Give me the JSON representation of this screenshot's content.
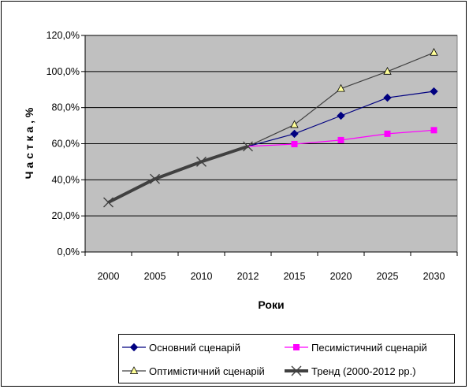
{
  "chart_data": {
    "type": "line",
    "categories": [
      "2000",
      "2005",
      "2010",
      "2012",
      "2015",
      "2020",
      "2025",
      "2030"
    ],
    "xlabel": "Роки",
    "ylabel": "Ч а с т к а ,  %",
    "ylim": [
      0,
      120
    ],
    "yticks": [
      "0,0%",
      "20,0%",
      "40,0%",
      "60,0%",
      "80,0%",
      "100,0%",
      "120,0%"
    ],
    "grid": true,
    "legend_position": "bottom",
    "plot_background": "#c0c0c0",
    "series": [
      {
        "name": "Основний сценарій",
        "color": "#000080",
        "marker": "diamond",
        "values": [
          null,
          null,
          null,
          58.5,
          65.5,
          75.5,
          85.5,
          89.0
        ]
      },
      {
        "name": "Песимістичний сценарій",
        "color": "#ff00ff",
        "marker": "square",
        "values": [
          null,
          null,
          null,
          58.5,
          59.8,
          62.0,
          65.5,
          67.5
        ]
      },
      {
        "name": "Оптимістичний сценарій",
        "color": "#404040",
        "marker": "triangle",
        "marker_fill": "#ffff99",
        "values": [
          null,
          null,
          null,
          58.5,
          70.5,
          90.5,
          100.0,
          110.5
        ]
      },
      {
        "name": "Тренд (2000-2012 рр.)",
        "color": "#404040",
        "marker": "x",
        "thick": true,
        "values": [
          27.5,
          40.5,
          50.0,
          58.5,
          null,
          null,
          null,
          null
        ]
      }
    ]
  }
}
